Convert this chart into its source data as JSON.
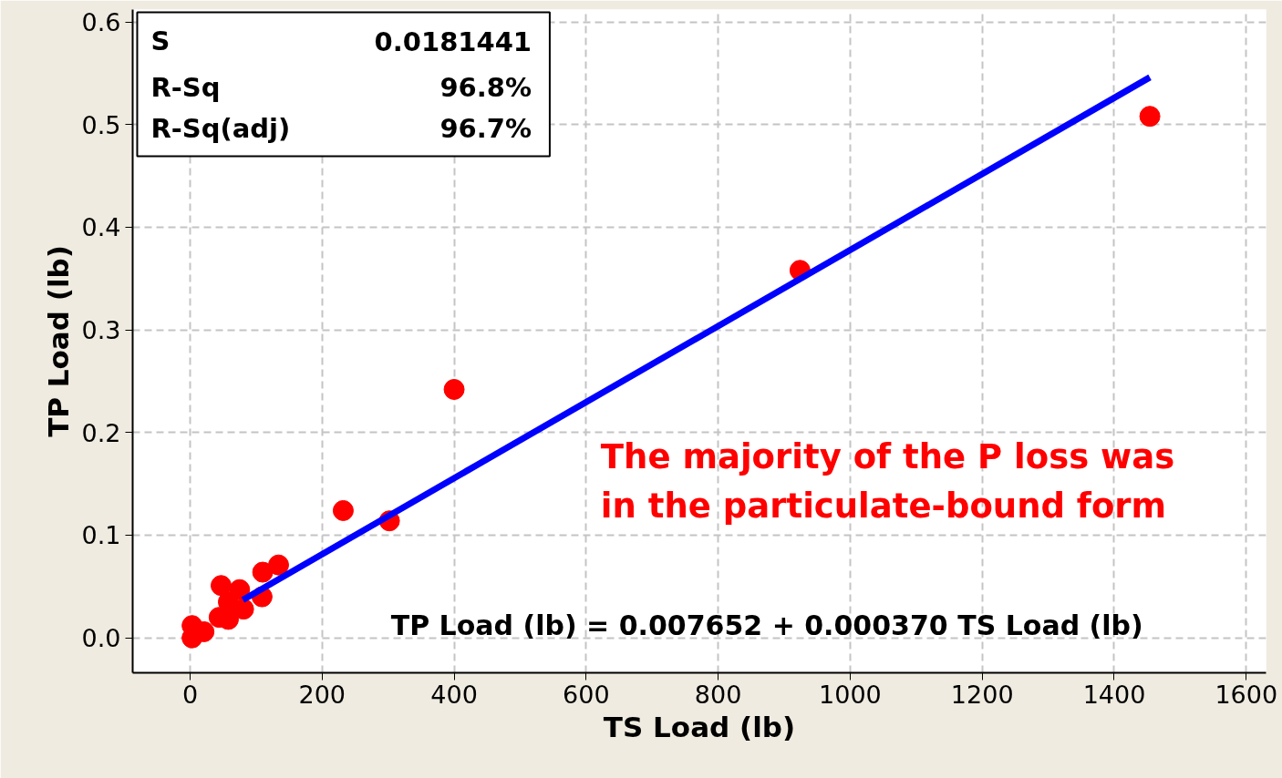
{
  "chart_data": {
    "type": "scatter",
    "xlabel": "TS Load (lb)",
    "ylabel": "TP Load (lb)",
    "xlim": [
      -87,
      1630
    ],
    "ylim": [
      -0.034,
      0.612
    ],
    "xticks": [
      0,
      200,
      400,
      600,
      800,
      1000,
      1200,
      1400,
      1600
    ],
    "yticks": [
      {
        "value": 0,
        "label": "0.0"
      },
      0.1,
      0.2,
      0.3,
      0.4,
      0.5,
      0.6
    ],
    "grid": true,
    "series": [
      {
        "marker": "circle",
        "color": "#ff0000",
        "x": [
          3,
          3,
          21,
          44,
          47,
          58,
          75,
          58,
          81,
          109,
          110,
          134,
          232,
          302,
          400,
          924,
          1454
        ],
        "values": [
          0.012,
          0.0,
          0.006,
          0.02,
          0.051,
          0.018,
          0.047,
          0.035,
          0.028,
          0.04,
          0.064,
          0.071,
          0.124,
          0.114,
          0.242,
          0.358,
          0.508
        ]
      },
      {
        "type": "line",
        "marker": "none",
        "color": "#0000ff",
        "x": [
          80,
          1454
        ],
        "values": [
          0.037,
          0.546
        ]
      }
    ],
    "annotations": [
      "S",
      "0.0181441",
      "R-Sq",
      "96.8%",
      "R-Sq(adj)",
      "96.7%",
      "TP Load (lb) =  0.007652 + 0.000370 TS Load (lb)",
      "The majority of the P loss was\nin the particulate-bound form"
    ]
  }
}
